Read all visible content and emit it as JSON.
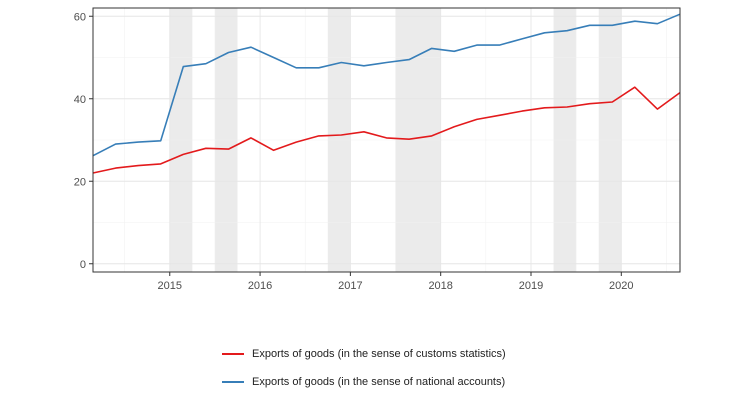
{
  "chart_data": {
    "type": "line",
    "title": "",
    "xlabel": "",
    "ylabel": "",
    "xlim": [
      2014.15,
      2020.65
    ],
    "ylim": [
      -2,
      62
    ],
    "y_ticks": [
      0,
      20,
      40,
      60
    ],
    "x_ticks": [
      "2015",
      "2016",
      "2017",
      "2018",
      "2019",
      "2020"
    ],
    "grid": true,
    "legend_position": "bottom",
    "shaded_periods": [
      [
        2015.0,
        2015.25
      ],
      [
        2015.5,
        2015.75
      ],
      [
        2016.75,
        2017.0
      ],
      [
        2017.5,
        2018.0
      ],
      [
        2019.25,
        2019.5
      ],
      [
        2019.75,
        2020.0
      ]
    ],
    "series": [
      {
        "name": "Exports of goods (in the sense of customs statistics)",
        "color": "#e31a1c",
        "x": [
          2014.15,
          2014.4,
          2014.65,
          2014.9,
          2015.15,
          2015.4,
          2015.65,
          2015.9,
          2016.15,
          2016.4,
          2016.65,
          2016.9,
          2017.15,
          2017.4,
          2017.65,
          2017.9,
          2018.15,
          2018.4,
          2018.65,
          2018.9,
          2019.15,
          2019.4,
          2019.65,
          2019.9,
          2020.15,
          2020.4,
          2020.65
        ],
        "values": [
          22.0,
          23.2,
          23.8,
          24.2,
          26.5,
          28.0,
          27.8,
          30.5,
          27.5,
          29.5,
          31.0,
          31.2,
          32.0,
          30.5,
          30.2,
          31.0,
          33.2,
          35.0,
          36.0,
          37.0,
          37.8,
          38.0,
          38.8,
          39.2,
          42.8,
          37.5,
          41.5
        ]
      },
      {
        "name": "Exports of goods (in the sense of national accounts)",
        "color": "#377eb8",
        "x": [
          2014.15,
          2014.4,
          2014.65,
          2014.9,
          2015.15,
          2015.4,
          2015.65,
          2015.9,
          2016.15,
          2016.4,
          2016.65,
          2016.9,
          2017.15,
          2017.4,
          2017.65,
          2017.9,
          2018.15,
          2018.4,
          2018.65,
          2018.9,
          2019.15,
          2019.4,
          2019.65,
          2019.9,
          2020.15,
          2020.4,
          2020.65
        ],
        "values": [
          26.2,
          29.0,
          29.5,
          29.8,
          47.8,
          48.5,
          51.2,
          52.5,
          50.0,
          47.5,
          47.5,
          48.8,
          48.0,
          48.8,
          49.5,
          52.2,
          51.5,
          53.0,
          53.0,
          54.5,
          56.0,
          56.5,
          57.8,
          57.8,
          58.8,
          58.2,
          60.5
        ]
      }
    ]
  }
}
